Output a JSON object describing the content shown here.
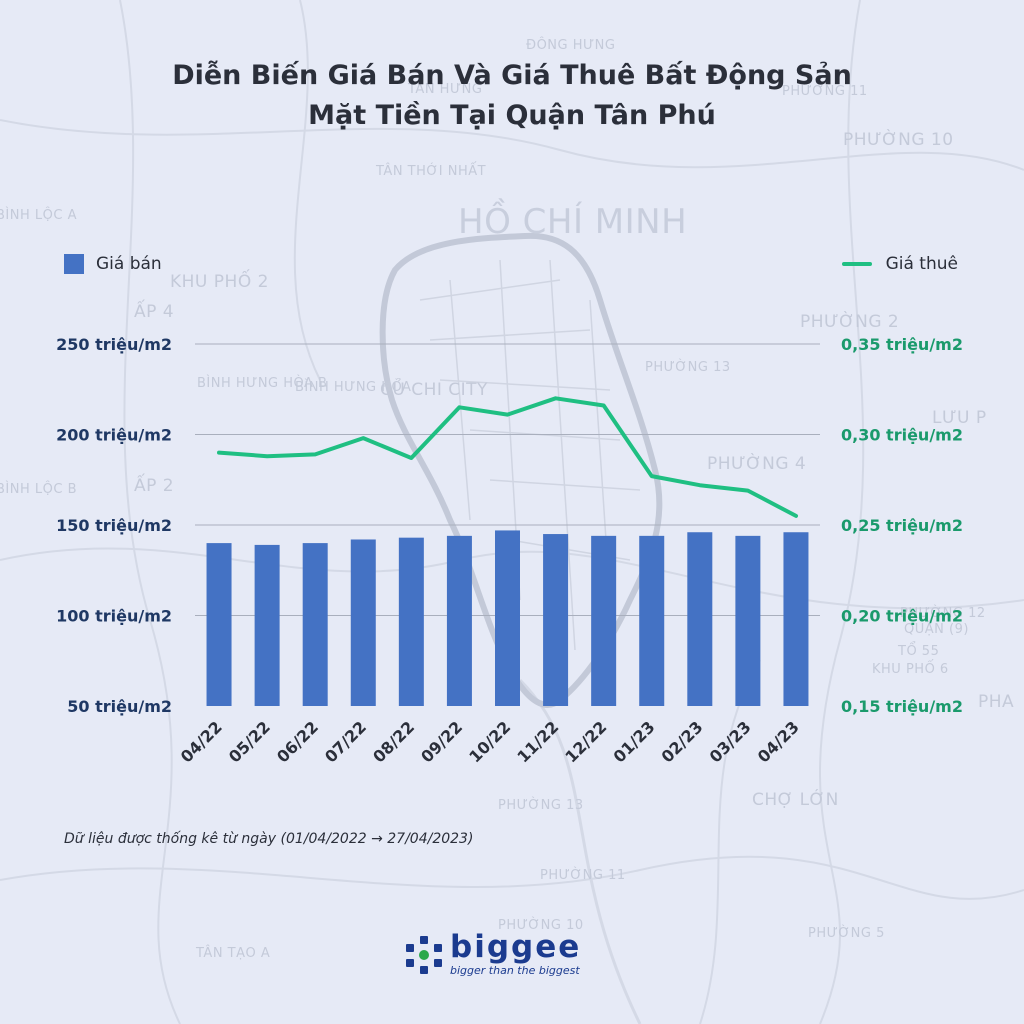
{
  "title_line1": "Diễn Biến Giá Bán Và Giá Thuê Bất Động Sản",
  "title_line2": "Mặt Tiền Tại Quận Tân Phú",
  "legend": {
    "bar_label": "Giá bán",
    "line_label": "Giá thuê"
  },
  "footnote": "Dữ liệu được thống kê từ ngày (01/04/2022 → 27/04/2023)",
  "brand": {
    "name": "biggee",
    "tagline": "bigger than the biggest"
  },
  "map_labels": [
    "ĐÔNG HƯNG",
    "PHƯỜNG 11",
    "TÂN HƯNG",
    "PHƯỜNG 10",
    "TÂN THỚI NHẤT",
    "HỒ CHÍ MINH",
    "BÌNH LỘC A",
    "KHU PHỐ 2",
    "ẤP 4",
    "PHƯỜNG 2",
    "PHƯỜNG 13",
    "BÌNH HƯNG HÒA B",
    "BÌNH HƯNG HÒA",
    "CỦ CHI CITY",
    "LƯU P",
    "PHƯỜNG 4",
    "ẤP 2",
    "BÌNH LỘC B",
    "PHƯỜNG 12",
    "QUẬN (9)",
    "TỔ 55",
    "KHU PHỐ 6",
    "PHA",
    "PHƯỜNG 13",
    "CHỢ LỚN",
    "PHƯỜNG 11",
    "PHƯỜNG 10",
    "PHƯỜNG 5",
    "TÂN TẠO A"
  ],
  "colors": {
    "bar": "#4472c4",
    "line": "#1fbf82",
    "left_axis": "#1f3864",
    "right_axis": "#1a9a6c",
    "grid": "#a9afbd"
  },
  "chart_data": {
    "type": "bar+line",
    "categories": [
      "04/22",
      "05/22",
      "06/22",
      "07/22",
      "08/22",
      "09/22",
      "10/22",
      "11/22",
      "12/22",
      "01/23",
      "02/23",
      "03/23",
      "04/23"
    ],
    "series": [
      {
        "name": "Giá bán",
        "type": "bar",
        "axis": "left",
        "unit": "triệu/m2",
        "values": [
          140,
          139,
          140,
          142,
          143,
          144,
          147,
          145,
          144,
          144,
          146,
          144,
          146
        ]
      },
      {
        "name": "Giá thuê",
        "type": "line",
        "axis": "right",
        "unit": "triệu/m2",
        "values": [
          0.29,
          0.288,
          0.289,
          0.298,
          0.287,
          0.315,
          0.311,
          0.32,
          0.316,
          0.277,
          0.272,
          0.269,
          0.255
        ]
      }
    ],
    "left_axis": {
      "min": 50,
      "max": 250,
      "ticks": [
        "50 triệu/m2",
        "100 triệu/m2",
        "150 triệu/m2",
        "200 triệu/m2",
        "250 triệu/m2"
      ]
    },
    "right_axis": {
      "min": 0.15,
      "max": 0.35,
      "ticks": [
        "0,15 triệu/m2",
        "0,20 triệu/m2",
        "0,25 triệu/m2",
        "0,30 triệu/m2",
        "0,35 triệu/m2"
      ]
    },
    "grid": true,
    "legend_placement": "top"
  }
}
